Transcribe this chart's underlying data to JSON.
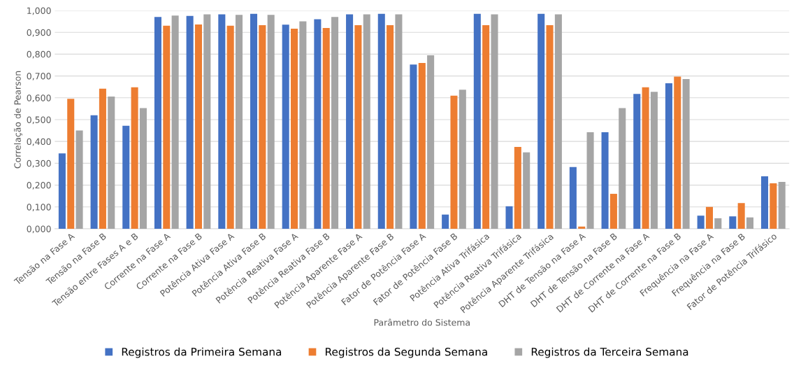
{
  "chart_data": {
    "type": "bar",
    "xlabel": "Parâmetro do Sistema",
    "ylabel": "Correlação de Pearson",
    "categories": [
      "Tensão na Fase A",
      "Tensão na Fase B",
      "Tensão entre Fases A e B",
      "Corrente na Fase A",
      "Corrente na Fase B",
      "Potência Ativa Fase A",
      "Potência Ativa Fase B",
      "Potência Reativa Fase A",
      "Potência Reativa Fase B",
      "Potência Aparente Fase A",
      "Potência Aparente Fase B",
      "Fator de Potência Fase A",
      "Fator de Potência Fase B",
      "Potência Ativa Trifásica",
      "Potência Reativa Trifásica",
      "Potência Aparente Trifásica",
      "DHT de Tensão na Fase A",
      "DHT de Tensão na Fase B",
      "DHT de Corrente na Fase A",
      "DHT de Corrente na Fase B",
      "Frequência na Fase A",
      "Frequência na Fase B",
      "Fator de Potência Trifásico"
    ],
    "series": [
      {
        "name": "Registros da Primeira Semana",
        "color": "#4472c4",
        "values": [
          0.345,
          0.52,
          0.472,
          0.97,
          0.975,
          0.982,
          0.985,
          0.935,
          0.96,
          0.982,
          0.985,
          0.752,
          0.065,
          0.985,
          0.103,
          0.985,
          0.283,
          0.442,
          0.618,
          0.667,
          0.06,
          0.057,
          0.24
        ]
      },
      {
        "name": "Registros da Segunda Semana",
        "color": "#ed7d31",
        "values": [
          0.595,
          0.642,
          0.648,
          0.93,
          0.936,
          0.93,
          0.933,
          0.917,
          0.92,
          0.933,
          0.933,
          0.76,
          0.61,
          0.933,
          0.375,
          0.933,
          0.01,
          0.16,
          0.648,
          0.697,
          0.1,
          0.118,
          0.208
        ]
      },
      {
        "name": "Registros da Terceira Semana",
        "color": "#a5a5a5",
        "values": [
          0.45,
          0.606,
          0.553,
          0.977,
          0.982,
          0.98,
          0.98,
          0.95,
          0.97,
          0.982,
          0.982,
          0.795,
          0.637,
          0.982,
          0.35,
          0.982,
          0.442,
          0.553,
          0.627,
          0.686,
          0.048,
          0.052,
          0.215
        ]
      }
    ],
    "ylim": [
      0,
      1
    ],
    "yticks": [
      {
        "value": 0,
        "label": "0,000"
      },
      {
        "value": 0.1,
        "label": "0,100"
      },
      {
        "value": 0.2,
        "label": "0,200"
      },
      {
        "value": 0.3,
        "label": "0,300"
      },
      {
        "value": 0.4,
        "label": "0,400"
      },
      {
        "value": 0.5,
        "label": "0,500"
      },
      {
        "value": 0.6,
        "label": "0,600"
      },
      {
        "value": 0.7,
        "label": "0,700"
      },
      {
        "value": 0.8,
        "label": "0,800"
      },
      {
        "value": 0.9,
        "label": "0,900"
      },
      {
        "value": 1.0,
        "label": "1,000"
      }
    ],
    "grid": "y",
    "legend": "bottom"
  }
}
